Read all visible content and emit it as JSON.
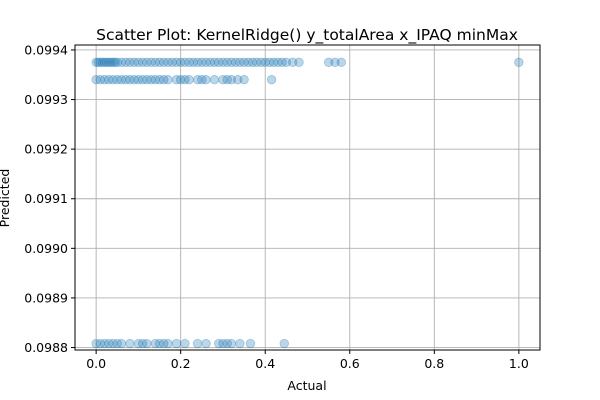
{
  "chart_data": {
    "type": "scatter",
    "title": "Scatter Plot: KernelRidge() y_totalArea x_IPAQ minMax",
    "xlabel": "Actual",
    "ylabel": "Predicted",
    "xlim": [
      -0.05,
      1.05
    ],
    "ylim": [
      0.098795,
      0.09941
    ],
    "xticks": [
      0.0,
      0.2,
      0.4,
      0.6,
      0.8,
      1.0
    ],
    "xtick_labels": [
      "0.0",
      "0.2",
      "0.4",
      "0.6",
      "0.8",
      "1.0"
    ],
    "yticks": [
      0.0988,
      0.0989,
      0.099,
      0.0991,
      0.0992,
      0.0993,
      0.0994
    ],
    "ytick_labels": [
      "0.0988",
      "0.0989",
      "0.0990",
      "0.0991",
      "0.0992",
      "0.0993",
      "0.0994"
    ],
    "grid": true,
    "color": "#1f77b4",
    "alpha": 0.3,
    "series": [
      {
        "points": [
          [
            0.0,
            0.099375
          ],
          [
            0.005,
            0.099375
          ],
          [
            0.01,
            0.099375
          ],
          [
            0.015,
            0.099375
          ],
          [
            0.02,
            0.099375
          ],
          [
            0.025,
            0.099375
          ],
          [
            0.03,
            0.099375
          ],
          [
            0.035,
            0.099375
          ],
          [
            0.04,
            0.099375
          ],
          [
            0.045,
            0.099375
          ],
          [
            0.05,
            0.099375
          ],
          [
            0.06,
            0.099375
          ],
          [
            0.07,
            0.099375
          ],
          [
            0.08,
            0.099375
          ],
          [
            0.09,
            0.099375
          ],
          [
            0.1,
            0.099375
          ],
          [
            0.11,
            0.099375
          ],
          [
            0.12,
            0.099375
          ],
          [
            0.13,
            0.099375
          ],
          [
            0.14,
            0.099375
          ],
          [
            0.15,
            0.099375
          ],
          [
            0.16,
            0.099375
          ],
          [
            0.17,
            0.099375
          ],
          [
            0.18,
            0.099375
          ],
          [
            0.19,
            0.099375
          ],
          [
            0.2,
            0.099375
          ],
          [
            0.21,
            0.099375
          ],
          [
            0.22,
            0.099375
          ],
          [
            0.23,
            0.099375
          ],
          [
            0.24,
            0.099375
          ],
          [
            0.25,
            0.099375
          ],
          [
            0.26,
            0.099375
          ],
          [
            0.27,
            0.099375
          ],
          [
            0.28,
            0.099375
          ],
          [
            0.29,
            0.099375
          ],
          [
            0.3,
            0.099375
          ],
          [
            0.31,
            0.099375
          ],
          [
            0.32,
            0.099375
          ],
          [
            0.33,
            0.099375
          ],
          [
            0.34,
            0.099375
          ],
          [
            0.35,
            0.099375
          ],
          [
            0.36,
            0.099375
          ],
          [
            0.37,
            0.099375
          ],
          [
            0.38,
            0.099375
          ],
          [
            0.39,
            0.099375
          ],
          [
            0.4,
            0.099375
          ],
          [
            0.41,
            0.099375
          ],
          [
            0.42,
            0.099375
          ],
          [
            0.43,
            0.099375
          ],
          [
            0.44,
            0.099375
          ],
          [
            0.45,
            0.099375
          ],
          [
            0.465,
            0.099375
          ],
          [
            0.48,
            0.099375
          ],
          [
            0.55,
            0.099375
          ],
          [
            0.565,
            0.099375
          ],
          [
            0.58,
            0.099375
          ],
          [
            1.0,
            0.099375
          ],
          [
            0.0,
            0.09934
          ],
          [
            0.01,
            0.09934
          ],
          [
            0.02,
            0.09934
          ],
          [
            0.03,
            0.09934
          ],
          [
            0.04,
            0.09934
          ],
          [
            0.05,
            0.09934
          ],
          [
            0.06,
            0.09934
          ],
          [
            0.07,
            0.09934
          ],
          [
            0.08,
            0.09934
          ],
          [
            0.09,
            0.09934
          ],
          [
            0.1,
            0.09934
          ],
          [
            0.11,
            0.09934
          ],
          [
            0.12,
            0.09934
          ],
          [
            0.13,
            0.09934
          ],
          [
            0.14,
            0.09934
          ],
          [
            0.15,
            0.09934
          ],
          [
            0.16,
            0.09934
          ],
          [
            0.17,
            0.09934
          ],
          [
            0.19,
            0.09934
          ],
          [
            0.2,
            0.09934
          ],
          [
            0.21,
            0.09934
          ],
          [
            0.22,
            0.09934
          ],
          [
            0.24,
            0.09934
          ],
          [
            0.25,
            0.09934
          ],
          [
            0.26,
            0.09934
          ],
          [
            0.28,
            0.09934
          ],
          [
            0.3,
            0.09934
          ],
          [
            0.31,
            0.09934
          ],
          [
            0.32,
            0.09934
          ],
          [
            0.335,
            0.09934
          ],
          [
            0.35,
            0.09934
          ],
          [
            0.415,
            0.09934
          ],
          [
            0.0,
            0.098808
          ],
          [
            0.01,
            0.098808
          ],
          [
            0.02,
            0.098808
          ],
          [
            0.03,
            0.098808
          ],
          [
            0.04,
            0.098808
          ],
          [
            0.05,
            0.098808
          ],
          [
            0.06,
            0.098808
          ],
          [
            0.08,
            0.098808
          ],
          [
            0.1,
            0.098808
          ],
          [
            0.11,
            0.098808
          ],
          [
            0.12,
            0.098808
          ],
          [
            0.14,
            0.098808
          ],
          [
            0.15,
            0.098808
          ],
          [
            0.16,
            0.098808
          ],
          [
            0.17,
            0.098808
          ],
          [
            0.19,
            0.098808
          ],
          [
            0.21,
            0.098808
          ],
          [
            0.24,
            0.098808
          ],
          [
            0.26,
            0.098808
          ],
          [
            0.29,
            0.098808
          ],
          [
            0.3,
            0.098808
          ],
          [
            0.31,
            0.098808
          ],
          [
            0.32,
            0.098808
          ],
          [
            0.34,
            0.098808
          ],
          [
            0.365,
            0.098808
          ],
          [
            0.445,
            0.098808
          ]
        ]
      }
    ]
  }
}
